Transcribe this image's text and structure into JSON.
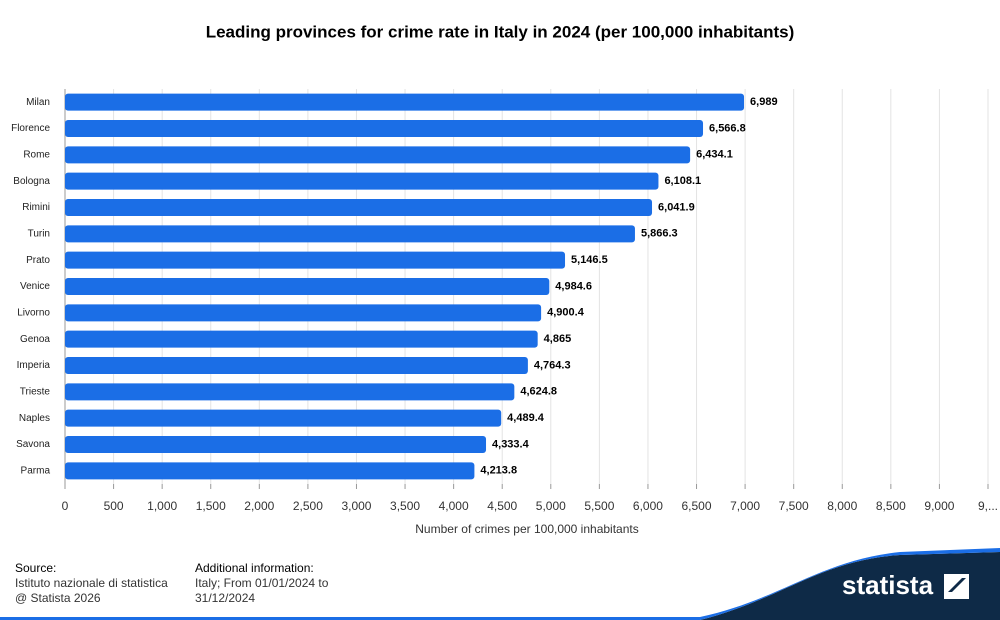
{
  "chart_data": {
    "type": "hbar",
    "title": "Leading provinces for crime rate in Italy in 2024 (per 100,000 inhabitants)",
    "categories": [
      "Milan",
      "Florence",
      "Rome",
      "Bologna",
      "Rimini",
      "Turin",
      "Prato",
      "Venice",
      "Livorno",
      "Genoa",
      "Imperia",
      "Trieste",
      "Naples",
      "Savona",
      "Parma"
    ],
    "values": [
      6989,
      6566.8,
      6434.1,
      6108.1,
      6041.9,
      5866.3,
      5146.5,
      4984.6,
      4900.4,
      4865,
      4764.3,
      4624.8,
      4489.4,
      4333.4,
      4213.8
    ],
    "value_labels": [
      "6,989",
      "6,566.8",
      "6,434.1",
      "6,108.1",
      "6,041.9",
      "5,866.3",
      "5,146.5",
      "4,984.6",
      "4,900.4",
      "4,865",
      "4,764.3",
      "4,624.8",
      "4,489.4",
      "4,333.4",
      "4,213.8"
    ],
    "color": "#1b6ee6",
    "xlabel": "Number of crimes per 100,000 inhabitants",
    "xlim": [
      0,
      9500
    ],
    "xticks": [
      0,
      500,
      {
        "value": 1000,
        "label": "1,000"
      },
      {
        "value": 1500,
        "label": "1,500"
      },
      {
        "value": 2000,
        "label": "2,000"
      },
      {
        "value": 2500,
        "label": "2,500"
      },
      {
        "value": 3000,
        "label": "3,000"
      },
      {
        "value": 3500,
        "label": "3,500"
      },
      {
        "value": 4000,
        "label": "4,000"
      },
      {
        "value": 4500,
        "label": "4,500"
      },
      {
        "value": 5000,
        "label": "5,000"
      },
      {
        "value": 5500,
        "label": "5,500"
      },
      {
        "value": 6000,
        "label": "6,000"
      },
      {
        "value": 6500,
        "label": "6,500"
      },
      {
        "value": 7000,
        "label": "7,000"
      },
      {
        "value": 7500,
        "label": "7,500"
      },
      {
        "value": 8000,
        "label": "8,000"
      },
      {
        "value": 8500,
        "label": "8,500"
      },
      {
        "value": 9000,
        "label": "9,000"
      },
      {
        "value": 9500,
        "label": "9,..."
      }
    ],
    "grid": true
  },
  "footer": {
    "source_title": "Source:",
    "source_lines": [
      "Istituto nazionale di statistica",
      "@ Statista 2026"
    ],
    "info_title": "Additional information:",
    "info_lines": [
      "Italy; From 01/01/2024 to",
      "31/12/2024"
    ],
    "logo": "statista"
  }
}
